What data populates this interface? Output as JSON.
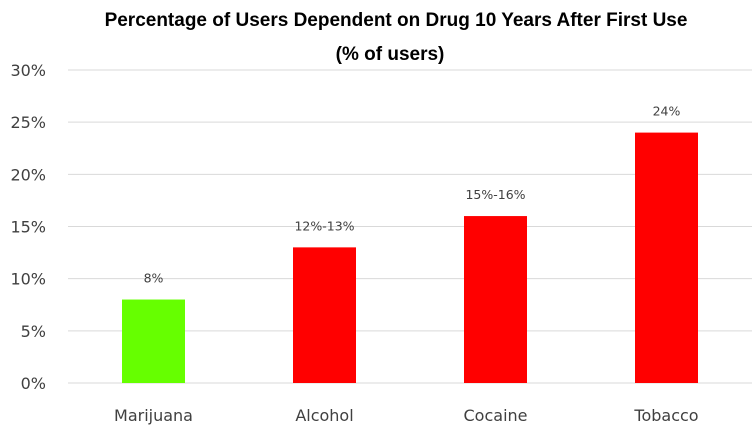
{
  "chart_data": {
    "type": "bar",
    "title_lines": [
      "Percentage of Users Dependent on Drug 10 Years After First Use",
      "(% of users)"
    ],
    "categories": [
      "Marijuana",
      "Alcohol",
      "Cocaine",
      "Tobacco"
    ],
    "values": [
      8,
      13,
      16,
      24
    ],
    "data_labels": [
      "8%",
      "12%-13%",
      "15%-16%",
      "24%"
    ],
    "bar_colors": [
      "#66ff00",
      "#ff0000",
      "#ff0000",
      "#ff0000"
    ],
    "ylim": [
      0,
      30
    ],
    "yticks": [
      0,
      5,
      10,
      15,
      20,
      25,
      30
    ],
    "ytick_labels": [
      "0%",
      "5%",
      "10%",
      "15%",
      "20%",
      "25%",
      "30%"
    ],
    "grid": true,
    "legend": false,
    "xlabel": "",
    "ylabel": ""
  }
}
